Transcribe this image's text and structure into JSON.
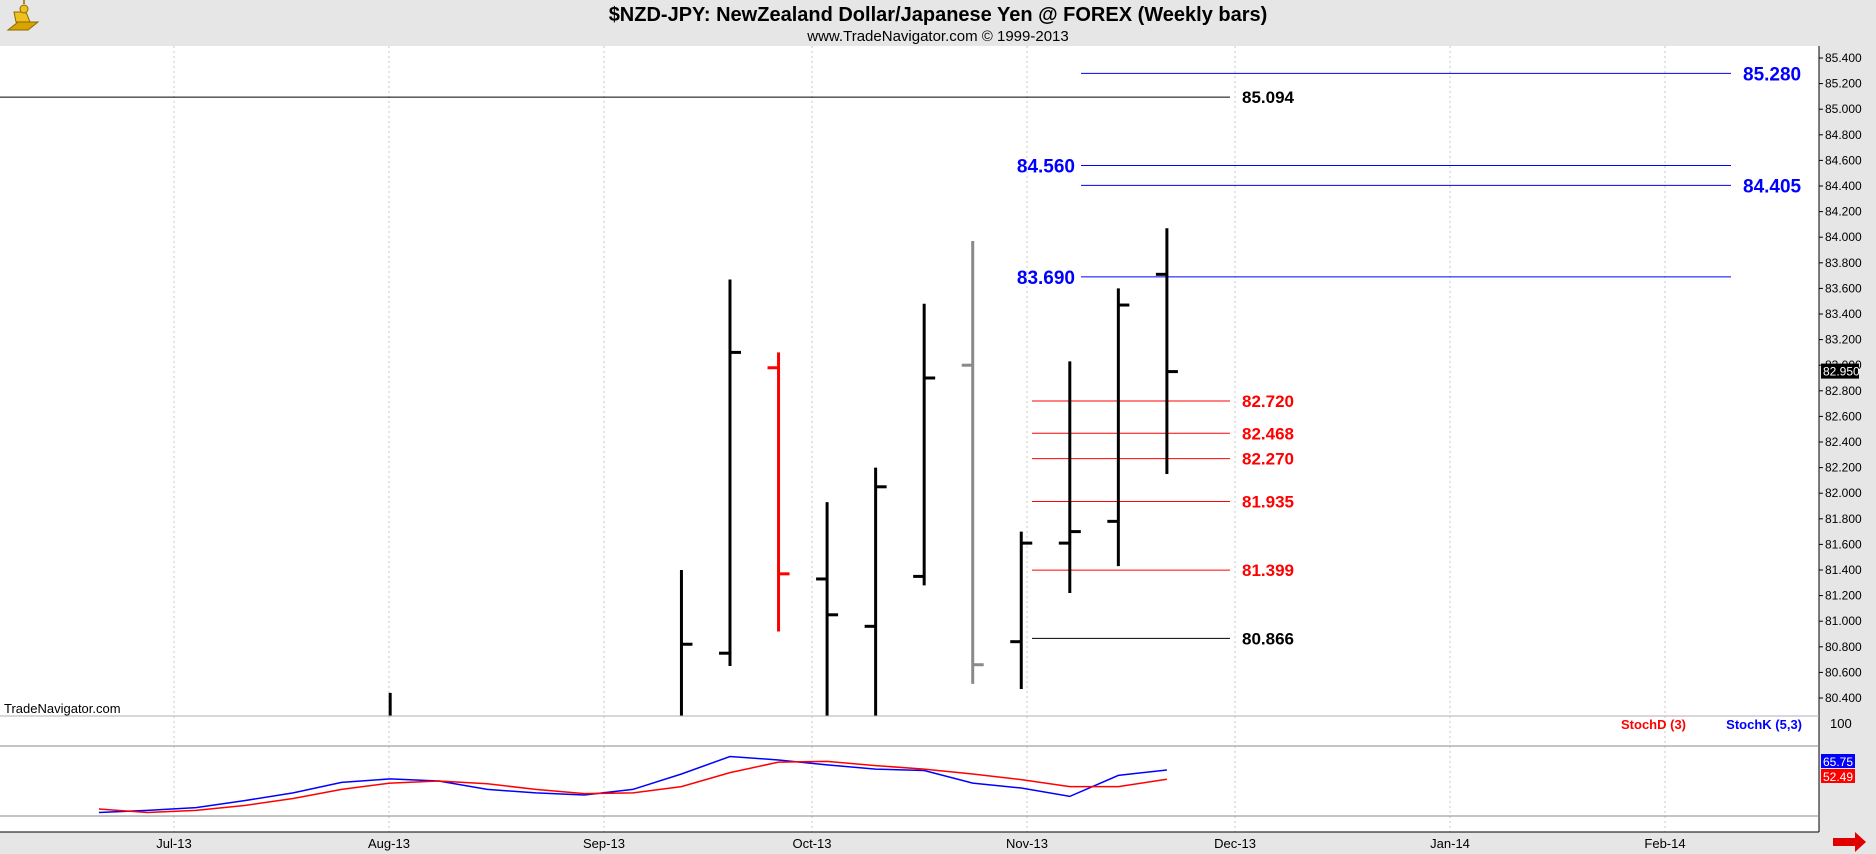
{
  "header": {
    "title": "$NZD-JPY:  NewZealand Dollar/Japanese Yen @ FOREX  (Weekly bars)",
    "subtitle": "www.TradeNavigator.com © 1999-2013",
    "watermark": "TradeNavigator.com"
  },
  "colors": {
    "bar": "#000000",
    "down_bar": "#ff0000",
    "gray_bar": "#8a8a8a",
    "blue_level": "#0000ff",
    "red_level": "#ff0000",
    "stoch_k": "#0000ff",
    "stoch_d": "#ff0000",
    "background": "#ffffff",
    "frame": "#e6e6e6"
  },
  "chart_data": [
    {
      "type": "ohlc",
      "ylim": [
        80.2,
        85.6
      ],
      "y_ticks": [
        "80.400",
        "80.600",
        "80.800",
        "81.000",
        "81.200",
        "81.400",
        "81.600",
        "81.800",
        "82.000",
        "82.200",
        "82.400",
        "82.600",
        "82.800",
        "83.000",
        "83.200",
        "83.400",
        "83.600",
        "83.800",
        "84.000",
        "84.200",
        "84.400",
        "84.600",
        "84.800",
        "85.000",
        "85.200",
        "85.400"
      ],
      "x_ticks": [
        "Jul-13",
        "Aug-13",
        "Sep-13",
        "Oct-13",
        "Nov-13",
        "Dec-13",
        "Jan-14",
        "Feb-14"
      ],
      "last_price": "82.950",
      "bars": [
        {
          "week": "2013-07-29",
          "open": null,
          "high": 80.44,
          "low": 79.5,
          "close": null,
          "color": "black"
        },
        {
          "week": "2013-09-09",
          "open": null,
          "high": 81.4,
          "low": 79.5,
          "close": 80.82,
          "color": "black"
        },
        {
          "week": "2013-09-16",
          "open": 80.75,
          "high": 83.67,
          "low": 80.65,
          "close": 83.1,
          "color": "black"
        },
        {
          "week": "2013-09-23",
          "open": 82.98,
          "high": 83.1,
          "low": 80.92,
          "close": 81.37,
          "color": "red"
        },
        {
          "week": "2013-09-30",
          "open": 81.33,
          "high": 81.93,
          "low": 79.5,
          "close": 81.05,
          "color": "black"
        },
        {
          "week": "2013-10-07",
          "open": 80.96,
          "high": 82.2,
          "low": 79.5,
          "close": 82.05,
          "color": "black"
        },
        {
          "week": "2013-10-14",
          "open": 81.35,
          "high": 83.48,
          "low": 81.28,
          "close": 82.9,
          "color": "black"
        },
        {
          "week": "2013-10-21",
          "open": 83.0,
          "high": 83.97,
          "low": 80.51,
          "close": 80.66,
          "color": "gray"
        },
        {
          "week": "2013-10-28",
          "open": 80.84,
          "high": 81.7,
          "low": 80.47,
          "close": 81.61,
          "color": "black"
        },
        {
          "week": "2013-11-04",
          "open": 81.61,
          "high": 83.03,
          "low": 81.22,
          "close": 81.7,
          "color": "black"
        },
        {
          "week": "2013-11-11",
          "open": 81.78,
          "high": 83.6,
          "low": 81.43,
          "close": 83.47,
          "color": "black"
        },
        {
          "week": "2013-11-18",
          "open": 83.71,
          "high": 84.07,
          "low": 82.15,
          "close": 82.95,
          "color": "black"
        }
      ],
      "levels": [
        {
          "value": 85.28,
          "label": "85.280",
          "color": "blue",
          "label_side": "right"
        },
        {
          "value": 85.094,
          "label": "85.094",
          "color": "black",
          "label_side": "left"
        },
        {
          "value": 84.56,
          "label": "84.560",
          "color": "blue",
          "label_side": "left"
        },
        {
          "value": 84.405,
          "label": "84.405",
          "color": "blue",
          "label_side": "right"
        },
        {
          "value": 83.69,
          "label": "83.690",
          "color": "blue",
          "label_side": "left"
        },
        {
          "value": 82.72,
          "label": "82.720",
          "color": "red",
          "label_side": "left"
        },
        {
          "value": 82.468,
          "label": "82.468",
          "color": "red",
          "label_side": "left"
        },
        {
          "value": 82.27,
          "label": "82.270",
          "color": "red",
          "label_side": "left"
        },
        {
          "value": 81.935,
          "label": "81.935",
          "color": "red",
          "label_side": "left"
        },
        {
          "value": 81.399,
          "label": "81.399",
          "color": "red",
          "label_side": "left"
        },
        {
          "value": 80.866,
          "label": "80.866",
          "color": "black",
          "label_side": "left"
        }
      ]
    },
    {
      "type": "line",
      "ylim": [
        0,
        100
      ],
      "y_ticks": [
        "100"
      ],
      "legend": [
        "StochD (3)",
        "StochK (5,3)"
      ],
      "legend_placement": "top-right",
      "series": [
        {
          "name": "StochK (5,3)",
          "color": "blue",
          "points": [
            [
              "2013-06-17",
              5
            ],
            [
              "2013-06-24",
              8
            ],
            [
              "2013-07-01",
              12
            ],
            [
              "2013-07-08",
              22
            ],
            [
              "2013-07-15",
              33
            ],
            [
              "2013-07-22",
              48
            ],
            [
              "2013-07-29",
              53
            ],
            [
              "2013-08-05",
              50
            ],
            [
              "2013-08-12",
              38
            ],
            [
              "2013-08-19",
              33
            ],
            [
              "2013-08-26",
              30
            ],
            [
              "2013-09-02",
              38
            ],
            [
              "2013-09-09",
              60
            ],
            [
              "2013-09-16",
              85
            ],
            [
              "2013-09-23",
              80
            ],
            [
              "2013-09-30",
              73
            ],
            [
              "2013-10-07",
              67
            ],
            [
              "2013-10-14",
              65
            ],
            [
              "2013-10-21",
              47
            ],
            [
              "2013-10-28",
              40
            ],
            [
              "2013-11-04",
              28
            ],
            [
              "2013-11-11",
              58
            ],
            [
              "2013-11-18",
              65.75
            ]
          ]
        },
        {
          "name": "StochD (3)",
          "color": "red",
          "points": [
            [
              "2013-06-17",
              10
            ],
            [
              "2013-06-24",
              5
            ],
            [
              "2013-07-01",
              8
            ],
            [
              "2013-07-08",
              15
            ],
            [
              "2013-07-15",
              25
            ],
            [
              "2013-07-22",
              38
            ],
            [
              "2013-07-29",
              47
            ],
            [
              "2013-08-05",
              50
            ],
            [
              "2013-08-12",
              46
            ],
            [
              "2013-08-19",
              38
            ],
            [
              "2013-08-26",
              32
            ],
            [
              "2013-09-02",
              33
            ],
            [
              "2013-09-09",
              42
            ],
            [
              "2013-09-16",
              62
            ],
            [
              "2013-09-23",
              77
            ],
            [
              "2013-09-30",
              78
            ],
            [
              "2013-10-07",
              72
            ],
            [
              "2013-10-14",
              67
            ],
            [
              "2013-10-21",
              60
            ],
            [
              "2013-10-28",
              52
            ],
            [
              "2013-11-04",
              42
            ],
            [
              "2013-11-11",
              42
            ],
            [
              "2013-11-18",
              52.49
            ]
          ]
        }
      ],
      "last_values": {
        "StochK (5,3)": "65.75",
        "StochD (3)": "52.49"
      }
    }
  ]
}
